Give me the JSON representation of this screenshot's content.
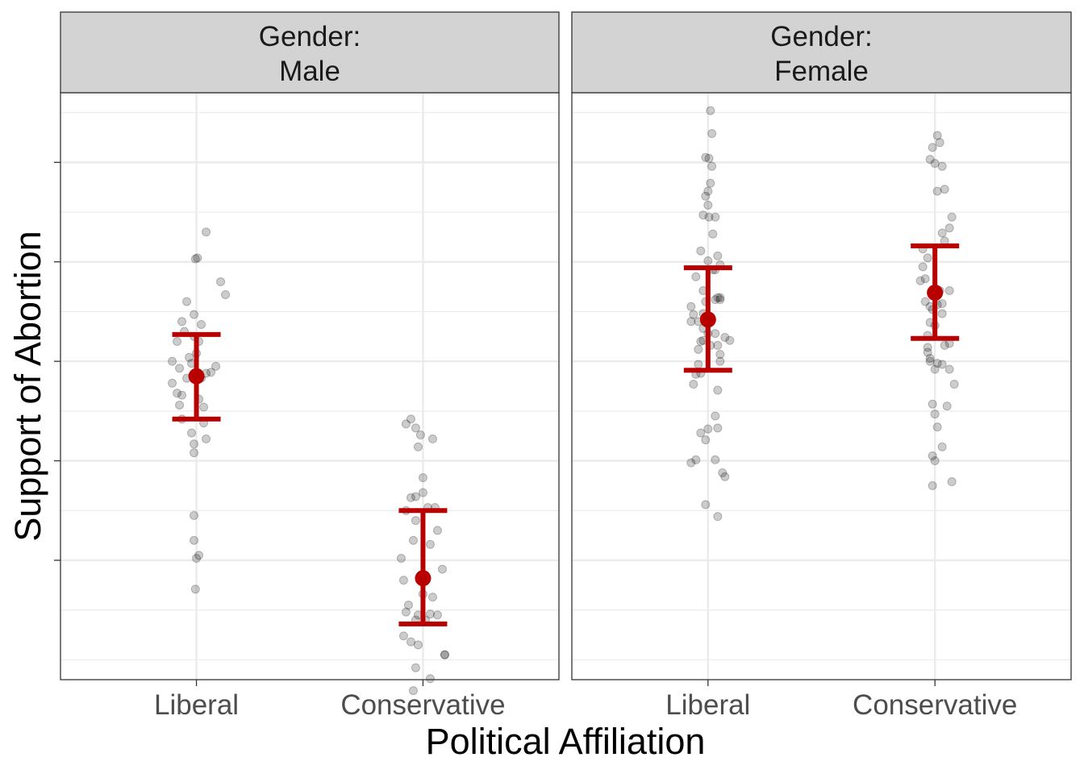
{
  "chart_data": {
    "type": "scatter",
    "title": "",
    "xlabel": "Political Affiliation",
    "ylabel": "Support of Abortion",
    "x_categories": [
      "Liberal",
      "Conservative"
    ],
    "ylim": [
      -1.2,
      4.7
    ],
    "y_tick_labels_shown": false,
    "grid": true,
    "colors": {
      "points": "#000000",
      "summary": "#b80000",
      "grid": "#ebebeb",
      "strip": "#d3d3d3",
      "border": "#333333"
    },
    "facets": [
      {
        "strip_lines": [
          "Gender:",
          "Male"
        ],
        "groups": [
          {
            "category": "Liberal",
            "mean": 1.85,
            "ci_low": 1.42,
            "ci_high": 2.27,
            "points": [
              [
                0.2,
                3.3
              ],
              [
                -0.02,
                3.03
              ],
              [
                0.02,
                3.04
              ],
              [
                0.5,
                2.8
              ],
              [
                -0.2,
                2.6
              ],
              [
                0.6,
                2.67
              ],
              [
                -0.05,
                2.47
              ],
              [
                -0.3,
                2.4
              ],
              [
                0.1,
                2.37
              ],
              [
                -0.4,
                2.2
              ],
              [
                -0.05,
                2.25
              ],
              [
                -0.25,
                2.3
              ],
              [
                0.05,
                2.2
              ],
              [
                -0.5,
                2.0
              ],
              [
                -0.15,
                2.04
              ],
              [
                0.0,
                2.08
              ],
              [
                -0.35,
                1.93
              ],
              [
                -0.1,
                1.98
              ],
              [
                0.3,
                1.89
              ],
              [
                0.4,
                1.95
              ],
              [
                0.2,
                1.88
              ],
              [
                -0.2,
                1.83
              ],
              [
                0.1,
                1.83
              ],
              [
                -0.5,
                1.78
              ],
              [
                -0.3,
                1.66
              ],
              [
                -0.4,
                1.68
              ],
              [
                -0.35,
                1.56
              ],
              [
                0.05,
                1.62
              ],
              [
                0.15,
                1.54
              ],
              [
                0.15,
                1.38
              ],
              [
                -0.3,
                1.42
              ],
              [
                -0.1,
                1.28
              ],
              [
                -0.05,
                1.17
              ],
              [
                0.2,
                1.22
              ],
              [
                -0.05,
                1.08
              ],
              [
                -0.05,
                0.45
              ],
              [
                -0.05,
                0.2
              ],
              [
                0.0,
                0.02
              ],
              [
                0.05,
                0.05
              ],
              [
                -0.02,
                -0.29
              ]
            ]
          },
          {
            "category": "Conservative",
            "mean": -0.18,
            "ci_low": -0.64,
            "ci_high": 0.5,
            "points": [
              [
                -0.25,
                1.42
              ],
              [
                -0.35,
                1.37
              ],
              [
                -0.15,
                1.33
              ],
              [
                0.2,
                1.22
              ],
              [
                -0.05,
                1.26
              ],
              [
                -0.1,
                1.14
              ],
              [
                0.0,
                0.83
              ],
              [
                -0.25,
                0.63
              ],
              [
                -0.15,
                0.64
              ],
              [
                0.0,
                0.68
              ],
              [
                0.1,
                0.53
              ],
              [
                0.25,
                0.53
              ],
              [
                -0.35,
                0.5
              ],
              [
                -0.15,
                0.4
              ],
              [
                0.3,
                0.3
              ],
              [
                -0.2,
                0.2
              ],
              [
                0.15,
                0.16
              ],
              [
                -0.45,
                0.02
              ],
              [
                0.4,
                -0.09
              ],
              [
                -0.4,
                -0.2
              ],
              [
                0.0,
                -0.34
              ],
              [
                0.2,
                -0.37
              ],
              [
                -0.3,
                -0.45
              ],
              [
                -0.35,
                -0.52
              ],
              [
                0.15,
                -0.54
              ],
              [
                0.3,
                -0.55
              ],
              [
                -0.1,
                -0.55
              ],
              [
                -0.15,
                -0.6
              ],
              [
                0.05,
                -0.6
              ],
              [
                -0.4,
                -0.76
              ],
              [
                -0.1,
                -0.85
              ],
              [
                -0.25,
                -0.82
              ],
              [
                0.45,
                -0.95
              ],
              [
                0.45,
                -0.95
              ],
              [
                -0.15,
                -1.08
              ],
              [
                0.15,
                -1.19
              ],
              [
                -0.2,
                -1.31
              ]
            ]
          }
        ]
      },
      {
        "strip_lines": [
          "Gender:",
          "Female"
        ],
        "groups": [
          {
            "category": "Liberal",
            "mean": 2.42,
            "ci_low": 1.91,
            "ci_high": 2.94,
            "points": [
              [
                0.05,
                4.52
              ],
              [
                0.08,
                4.29
              ],
              [
                -0.05,
                4.05
              ],
              [
                0.02,
                4.04
              ],
              [
                0.08,
                3.96
              ],
              [
                0.05,
                3.79
              ],
              [
                0.0,
                3.71
              ],
              [
                -0.05,
                3.66
              ],
              [
                0.0,
                3.57
              ],
              [
                0.02,
                3.45
              ],
              [
                -0.1,
                3.47
              ],
              [
                0.15,
                3.45
              ],
              [
                0.1,
                3.28
              ],
              [
                -0.15,
                3.11
              ],
              [
                0.2,
                3.06
              ],
              [
                0.0,
                3.01
              ],
              [
                0.25,
                2.97
              ],
              [
                0.15,
                2.92
              ],
              [
                -0.25,
                2.85
              ],
              [
                0.1,
                2.92
              ],
              [
                -0.1,
                2.71
              ],
              [
                0.15,
                2.62
              ],
              [
                0.25,
                2.62
              ],
              [
                -0.35,
                2.55
              ],
              [
                -0.05,
                2.6
              ],
              [
                0.2,
                2.64
              ],
              [
                0.25,
                2.64
              ],
              [
                -0.3,
                2.47
              ],
              [
                -0.1,
                2.48
              ],
              [
                -0.35,
                2.4
              ],
              [
                -0.2,
                2.4
              ],
              [
                -0.1,
                2.33
              ],
              [
                0.15,
                2.28
              ],
              [
                0.2,
                2.16
              ],
              [
                -0.1,
                2.21
              ],
              [
                0.35,
                2.24
              ],
              [
                0.25,
                2.0
              ],
              [
                -0.2,
                1.97
              ],
              [
                -0.15,
                1.88
              ],
              [
                0.05,
                2.16
              ],
              [
                0.0,
                2.28
              ],
              [
                -0.15,
                2.2
              ],
              [
                -0.2,
                2.12
              ],
              [
                0.45,
                2.21
              ],
              [
                0.25,
                2.07
              ],
              [
                -0.25,
                1.87
              ],
              [
                -0.3,
                1.77
              ],
              [
                0.2,
                1.71
              ],
              [
                0.15,
                1.45
              ],
              [
                -0.05,
                1.21
              ],
              [
                -0.15,
                1.28
              ],
              [
                0.0,
                1.32
              ],
              [
                0.2,
                1.33
              ],
              [
                -0.25,
                1.01
              ],
              [
                0.15,
                1.01
              ],
              [
                -0.35,
                0.98
              ],
              [
                0.3,
                0.88
              ],
              [
                0.35,
                0.84
              ],
              [
                -0.05,
                0.56
              ],
              [
                0.2,
                0.44
              ]
            ]
          },
          {
            "category": "Conservative",
            "mean": 2.69,
            "ci_low": 2.23,
            "ci_high": 3.16,
            "points": [
              [
                0.05,
                4.27
              ],
              [
                0.1,
                4.2
              ],
              [
                -0.05,
                4.15
              ],
              [
                -0.1,
                4.03
              ],
              [
                0.0,
                3.99
              ],
              [
                0.15,
                3.96
              ],
              [
                0.2,
                3.73
              ],
              [
                0.05,
                3.71
              ],
              [
                0.35,
                3.45
              ],
              [
                0.3,
                3.34
              ],
              [
                0.15,
                3.29
              ],
              [
                0.2,
                3.21
              ],
              [
                -0.25,
                3.13
              ],
              [
                -0.15,
                3.04
              ],
              [
                -0.25,
                2.95
              ],
              [
                -0.3,
                2.81
              ],
              [
                -0.2,
                2.83
              ],
              [
                0.1,
                2.71
              ],
              [
                0.3,
                2.71
              ],
              [
                -0.2,
                2.6
              ],
              [
                -0.1,
                2.55
              ],
              [
                0.15,
                2.58
              ],
              [
                0.05,
                2.57
              ],
              [
                -0.05,
                2.52
              ],
              [
                0.15,
                2.48
              ],
              [
                -0.1,
                2.39
              ],
              [
                0.0,
                2.36
              ],
              [
                -0.15,
                2.26
              ],
              [
                0.2,
                2.16
              ],
              [
                -0.15,
                2.14
              ],
              [
                0.3,
                2.18
              ],
              [
                -0.1,
                2.03
              ],
              [
                -0.15,
                2.09
              ],
              [
                -0.1,
                2.0
              ],
              [
                0.05,
                1.98
              ],
              [
                0.0,
                1.92
              ],
              [
                0.3,
                1.92
              ],
              [
                0.15,
                1.97
              ],
              [
                0.4,
                1.77
              ],
              [
                -0.05,
                1.57
              ],
              [
                0.25,
                1.55
              ],
              [
                0.0,
                1.47
              ],
              [
                0.05,
                1.34
              ],
              [
                0.15,
                1.14
              ],
              [
                -0.05,
                1.05
              ],
              [
                0.0,
                1.0
              ],
              [
                0.35,
                0.79
              ],
              [
                -0.05,
                0.75
              ]
            ]
          }
        ]
      }
    ]
  }
}
